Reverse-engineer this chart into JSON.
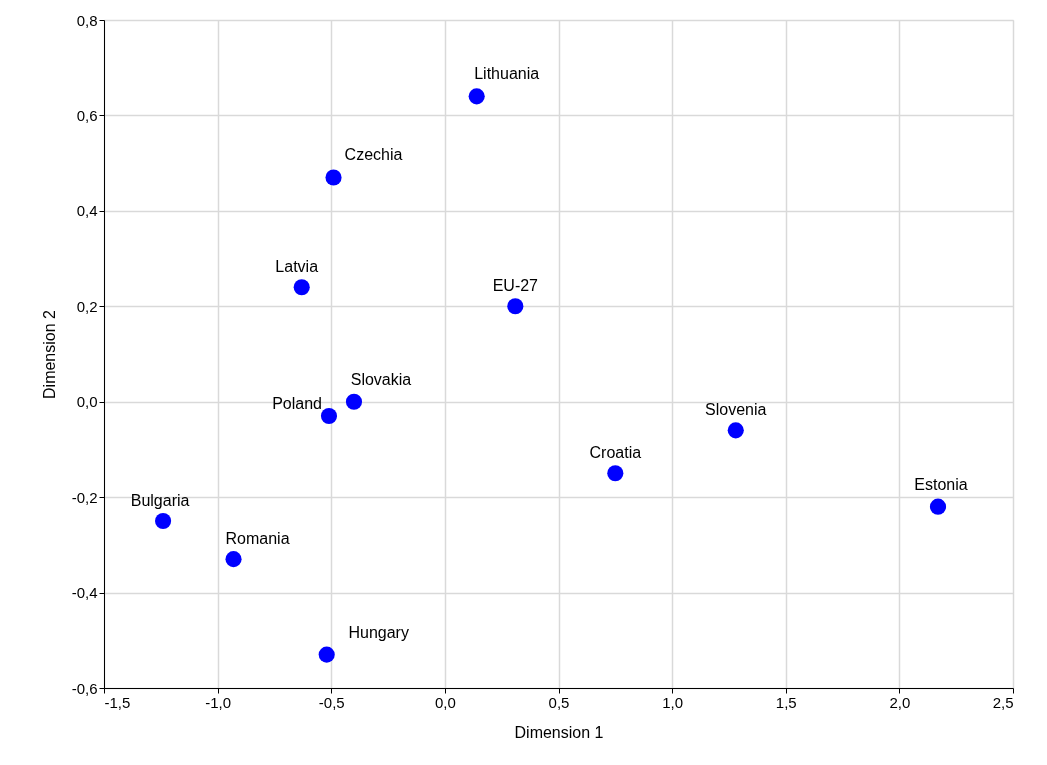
{
  "chart_data": {
    "type": "scatter",
    "xlabel": "Dimension 1",
    "ylabel": "Dimension 2",
    "x": [
      0.14,
      -0.49,
      -0.63,
      0.31,
      -0.4,
      -0.51,
      1.28,
      0.75,
      2.17,
      -1.24,
      -0.93,
      -0.52
    ],
    "series": [
      {
        "color": "#0000ff",
        "values": [
          0.64,
          0.47,
          0.24,
          0.2,
          0.0,
          -0.03,
          -0.06,
          -0.15,
          -0.22,
          -0.25,
          -0.33,
          -0.53
        ]
      }
    ],
    "annotations": [
      {
        "text": "Lithuania",
        "x": 0.14,
        "y": 0.64
      },
      {
        "text": "Czechia",
        "x": -0.49,
        "y": 0.47
      },
      {
        "text": "Latvia",
        "x": -0.63,
        "y": 0.24
      },
      {
        "text": "EU-27",
        "x": 0.31,
        "y": 0.2
      },
      {
        "text": "Slovakia",
        "x": -0.4,
        "y": 0.0
      },
      {
        "text": "Poland",
        "x": -0.51,
        "y": -0.03
      },
      {
        "text": "Slovenia",
        "x": 1.28,
        "y": -0.06
      },
      {
        "text": "Croatia",
        "x": 0.75,
        "y": -0.15
      },
      {
        "text": "Estonia",
        "x": 2.17,
        "y": -0.22
      },
      {
        "text": "Bulgaria",
        "x": -1.24,
        "y": -0.25
      },
      {
        "text": "Romania",
        "x": -0.93,
        "y": -0.33
      },
      {
        "text": "Hungary",
        "x": -0.52,
        "y": -0.53
      }
    ],
    "xlim": [
      -1.5,
      2.5
    ],
    "xticks": [
      {
        "value": -1.5,
        "label": "-1,5"
      },
      {
        "value": -1.0,
        "label": "-1,0"
      },
      {
        "value": -0.5,
        "label": "-0,5"
      },
      {
        "value": 0.0,
        "label": "0,0"
      },
      {
        "value": 0.5,
        "label": "0,5"
      },
      {
        "value": 1.0,
        "label": "1,0"
      },
      {
        "value": 1.5,
        "label": "1,5"
      },
      {
        "value": 2.0,
        "label": "2,0"
      },
      {
        "value": 2.5,
        "label": "2,5"
      }
    ],
    "ylim": [
      -0.6,
      0.8
    ],
    "yticks": [
      {
        "value": -0.6,
        "label": "-0,6"
      },
      {
        "value": -0.4,
        "label": "-0,4"
      },
      {
        "value": -0.2,
        "label": "-0,2"
      },
      {
        "value": 0.0,
        "label": "0,0"
      },
      {
        "value": 0.2,
        "label": "0,2"
      },
      {
        "value": 0.4,
        "label": "0,4"
      },
      {
        "value": 0.6,
        "label": "0,6"
      },
      {
        "value": 0.8,
        "label": "0,8"
      }
    ],
    "grid": true,
    "marker": "circle"
  }
}
